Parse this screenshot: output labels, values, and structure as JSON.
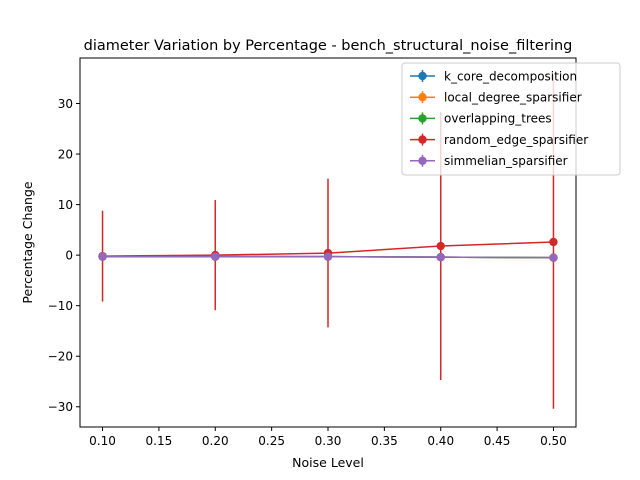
{
  "chart_data": {
    "type": "line",
    "title": "diameter Variation by Percentage - bench_structural_noise_filtering",
    "xlabel": "Noise Level",
    "ylabel": "Percentage Change",
    "x": [
      0.1,
      0.2,
      0.3,
      0.4,
      0.5
    ],
    "xlim": [
      0.08,
      0.52
    ],
    "ylim": [
      -34,
      39
    ],
    "xticks": [
      0.1,
      0.15,
      0.2,
      0.25,
      0.3,
      0.35,
      0.4,
      0.45,
      0.5
    ],
    "xtick_labels": [
      "0.10",
      "0.15",
      "0.20",
      "0.25",
      "0.30",
      "0.35",
      "0.40",
      "0.45",
      "0.50"
    ],
    "yticks": [
      -30,
      -20,
      -10,
      0,
      10,
      20,
      30
    ],
    "ytick_labels": [
      "−30",
      "−20",
      "−10",
      "0",
      "10",
      "20",
      "30"
    ],
    "grid": false,
    "legend_position": "top-right",
    "series": [
      {
        "name": "k_core_decomposition",
        "color": "#1f77b4",
        "values": [
          -0.3,
          -0.3,
          -0.3,
          -0.4,
          -0.5
        ],
        "errors": [
          0.0,
          0.0,
          0.0,
          0.0,
          0.0
        ]
      },
      {
        "name": "local_degree_sparsifier",
        "color": "#ff7f0e",
        "values": [
          -0.3,
          -0.3,
          -0.3,
          -0.4,
          -0.5
        ],
        "errors": [
          0.0,
          0.0,
          0.0,
          0.0,
          0.0
        ]
      },
      {
        "name": "overlapping_trees",
        "color": "#2ca02c",
        "values": [
          -0.3,
          -0.3,
          -0.3,
          -0.4,
          -0.5
        ],
        "errors": [
          0.0,
          0.0,
          0.0,
          0.0,
          0.0
        ]
      },
      {
        "name": "random_edge_sparsifier",
        "color": "#d62728",
        "values": [
          -0.2,
          0.0,
          0.4,
          1.8,
          2.6
        ],
        "errors": [
          9.0,
          10.9,
          14.7,
          26.5,
          33.0
        ]
      },
      {
        "name": "simmelian_sparsifier",
        "color": "#9467bd",
        "values": [
          -0.3,
          -0.3,
          -0.3,
          -0.4,
          -0.5
        ],
        "errors": [
          0.0,
          0.0,
          0.0,
          0.0,
          0.0
        ]
      }
    ]
  }
}
